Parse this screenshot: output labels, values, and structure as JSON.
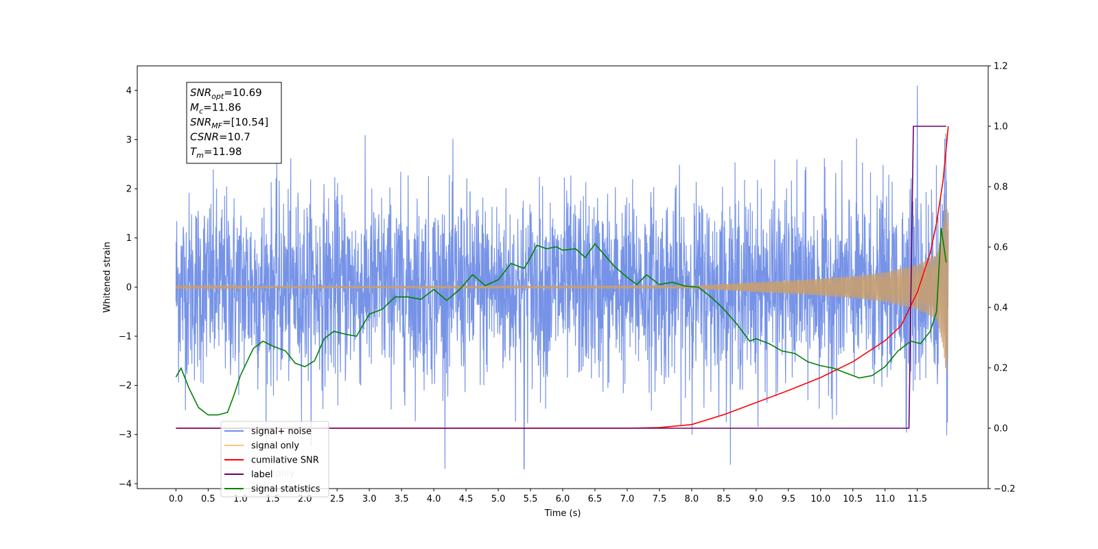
{
  "chart_data": {
    "type": "line",
    "xlabel": "Time (s)",
    "ylabel": "Whitened strain",
    "xlim": [
      -0.6,
      12.6
    ],
    "ylim": [
      -4.1,
      4.5
    ],
    "y2lim": [
      -0.2,
      1.2
    ],
    "x_ticks": [
      0.0,
      0.5,
      1.0,
      1.5,
      2.0,
      2.5,
      3.0,
      3.5,
      4.0,
      4.5,
      5.0,
      5.5,
      6.0,
      6.5,
      7.0,
      7.5,
      8.0,
      8.5,
      9.0,
      9.5,
      10.0,
      10.5,
      11.0,
      11.5
    ],
    "x_tick_labels": [
      "0.0",
      "0.5",
      "1.0",
      "1.5",
      "2.0",
      "2.5",
      "3.0",
      "3.5",
      "4.0",
      "4.5",
      "5.0",
      "5.5",
      "6.0",
      "6.5",
      "7.0",
      "7.5",
      "8.0",
      "8.5",
      "9.0",
      "9.5",
      "10.0",
      "10.5",
      "11.0",
      "11.5"
    ],
    "y_ticks": [
      4,
      3,
      2,
      1,
      0,
      -1,
      -2,
      -3,
      -4
    ],
    "y_tick_labels": [
      "4",
      "3",
      "2",
      "1",
      "0",
      "−1",
      "−2",
      "−3",
      "−4"
    ],
    "y2_ticks": [
      1.2,
      1.0,
      0.8,
      0.6,
      0.4,
      0.2,
      0.0,
      -0.2
    ],
    "y2_tick_labels": [
      "1.2",
      "1.0",
      "0.8",
      "0.6",
      "0.4",
      "0.2",
      "0.0",
      "−0.2"
    ],
    "grid": false,
    "legend_position": "bottom-left",
    "annotation_box": {
      "position": "top-left",
      "lines": [
        {
          "main": "SNR",
          "sub": "opt",
          "value": "=10.69"
        },
        {
          "main": "M",
          "sub": "c",
          "value": "=11.86"
        },
        {
          "main": "SNR",
          "sub": "MF",
          "value": "=[10.54]"
        },
        {
          "main": "CSNR",
          "sub": "",
          "value": "=10.7"
        },
        {
          "main": "T",
          "sub": "m",
          "value": "=11.98"
        }
      ]
    },
    "legend": [
      {
        "name": "signal+ noise",
        "color": "#6f8de6"
      },
      {
        "name": "signal only",
        "color": "#f5c77e"
      },
      {
        "name": "cumilative SNR",
        "color": "#ff0000"
      },
      {
        "name": "label",
        "color": "#6a006a"
      },
      {
        "name": "signal statistics",
        "color": "#007f00"
      }
    ],
    "overlapped_legend_text": [
      "label only"
    ],
    "series": [
      {
        "name": "signal+ noise",
        "axis": "left",
        "color": "#6f8de6",
        "x_range": [
          0.0,
          11.98
        ],
        "approx_range": [
          -3.7,
          4.1
        ],
        "description_values": {
          "typical_amplitude": 1.0,
          "max": 4.1,
          "max_at": 11.5,
          "min": -3.7,
          "min_at": 5.4
        }
      },
      {
        "name": "signal only",
        "axis": "left",
        "color": "#c9a06f",
        "envelope": {
          "x": [
            0.0,
            8.0,
            8.5,
            9.0,
            9.5,
            10.0,
            10.5,
            11.0,
            11.5,
            11.8,
            11.9,
            11.95,
            11.98
          ],
          "amp": [
            0.02,
            0.03,
            0.06,
            0.1,
            0.13,
            0.17,
            0.22,
            0.3,
            0.45,
            0.65,
            1.2,
            1.8,
            1.3
          ]
        }
      },
      {
        "name": "cumilative SNR",
        "axis": "right",
        "color": "#ff0000",
        "x": [
          0.0,
          7.0,
          7.5,
          8.0,
          8.5,
          9.0,
          9.5,
          10.0,
          10.5,
          11.0,
          11.25,
          11.5,
          11.7,
          11.8,
          11.9,
          11.95,
          11.98
        ],
        "y": [
          0.0,
          0.0,
          0.002,
          0.012,
          0.045,
          0.085,
          0.125,
          0.168,
          0.22,
          0.29,
          0.34,
          0.45,
          0.58,
          0.68,
          0.82,
          0.93,
          1.0
        ]
      },
      {
        "name": "label",
        "axis": "right",
        "color": "#6a006a",
        "x": [
          0.0,
          11.37,
          11.44,
          11.95
        ],
        "y": [
          0.0,
          0.0,
          1.0,
          1.0
        ]
      },
      {
        "name": "signal statistics",
        "axis": "left",
        "color": "#007f00",
        "x": [
          0.0,
          0.08,
          0.2,
          0.35,
          0.5,
          0.65,
          0.8,
          0.9,
          1.0,
          1.2,
          1.35,
          1.5,
          1.7,
          1.85,
          2.0,
          2.15,
          2.3,
          2.45,
          2.6,
          2.8,
          3.0,
          3.2,
          3.4,
          3.6,
          3.8,
          4.0,
          4.2,
          4.4,
          4.6,
          4.8,
          5.0,
          5.2,
          5.4,
          5.5,
          5.6,
          5.75,
          5.9,
          6.0,
          6.2,
          6.35,
          6.5,
          6.65,
          6.8,
          7.0,
          7.15,
          7.3,
          7.5,
          7.7,
          7.9,
          8.1,
          8.3,
          8.5,
          8.7,
          8.9,
          9.0,
          9.2,
          9.4,
          9.6,
          9.8,
          10.0,
          10.2,
          10.4,
          10.6,
          10.8,
          11.0,
          11.2,
          11.4,
          11.55,
          11.7,
          11.8,
          11.87,
          11.95
        ],
        "y": [
          -1.83,
          -1.65,
          -2.05,
          -2.45,
          -2.6,
          -2.6,
          -2.55,
          -2.2,
          -1.8,
          -1.25,
          -1.1,
          -1.2,
          -1.3,
          -1.55,
          -1.62,
          -1.5,
          -1.05,
          -0.9,
          -0.95,
          -1.0,
          -0.55,
          -0.45,
          -0.2,
          -0.2,
          -0.25,
          -0.05,
          -0.27,
          -0.05,
          0.25,
          0.03,
          0.15,
          0.48,
          0.38,
          0.6,
          0.85,
          0.78,
          0.82,
          0.75,
          0.78,
          0.6,
          0.88,
          0.65,
          0.42,
          0.2,
          0.05,
          0.25,
          0.05,
          0.1,
          0.02,
          0.0,
          -0.2,
          -0.45,
          -0.75,
          -1.1,
          -1.05,
          -1.15,
          -1.3,
          -1.35,
          -1.52,
          -1.6,
          -1.65,
          -1.75,
          -1.85,
          -1.8,
          -1.62,
          -1.3,
          -1.1,
          -1.15,
          -0.9,
          -0.5,
          1.2,
          0.5
        ]
      }
    ]
  }
}
